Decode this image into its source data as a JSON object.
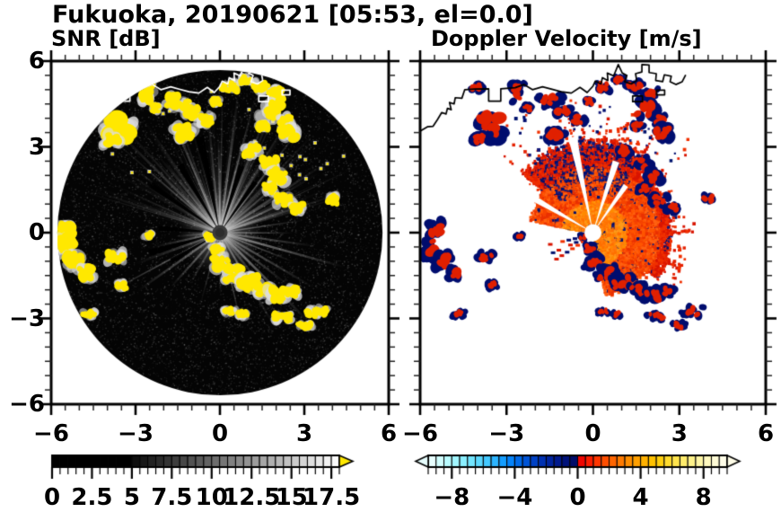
{
  "title": "Fukuoka, 20190621 [05:53, el=0.0]",
  "panels": [
    {
      "subtitle": "SNR [dB]"
    },
    {
      "subtitle": "Doppler Velocity [m/s]"
    }
  ],
  "axes": {
    "xlim": [
      -6,
      6
    ],
    "ylim": [
      -6,
      6
    ],
    "x_tick_values": [
      -6,
      -3,
      0,
      3,
      6
    ],
    "x_tick_labels": [
      "−6",
      "−3",
      "0",
      "3",
      "6"
    ],
    "y_tick_values": [
      6,
      3,
      0,
      -3,
      -6
    ],
    "y_tick_labels": [
      "6",
      "3",
      "0",
      "−3",
      "−6"
    ],
    "minor_tick_step": 0.5
  },
  "colorbars": {
    "snr": {
      "min": 0,
      "max": 18,
      "segment_step": 0.5,
      "tick_values": [
        0,
        2.5,
        5,
        7.5,
        10,
        12.5,
        15,
        17.5
      ],
      "tick_labels": [
        "0",
        "2.5",
        "5",
        "7.5",
        "10",
        "12.5",
        "15",
        "17.5"
      ],
      "major_tick_every": 2.5,
      "over_arrow_color": "#ffe800",
      "segment_colors": [
        "#000000",
        "#000000",
        "#000000",
        "#000000",
        "#000000",
        "#000000",
        "#000000",
        "#000000",
        "#000000",
        "#000000",
        "#0f0f0f",
        "#181818",
        "#222222",
        "#2b2b2b",
        "#343434",
        "#3e3e3e",
        "#474747",
        "#515151",
        "#5a5a5a",
        "#636363",
        "#6d6d6d",
        "#767676",
        "#808080",
        "#898989",
        "#939393",
        "#9c9c9c",
        "#a6a6a6",
        "#afafaf",
        "#b8b8b8",
        "#c2c2c2",
        "#cbcbcb",
        "#d5d5d5",
        "#dedede",
        "#e8e8e8",
        "#f1f1f1",
        "#fafafa"
      ]
    },
    "vel": {
      "min": -9.5,
      "max": 9.5,
      "segment_step": 0.5,
      "tick_values": [
        -8,
        -4,
        0,
        4,
        8
      ],
      "tick_labels": [
        "−8",
        "−4",
        "0",
        "4",
        "8"
      ],
      "segment_colors": [
        "#e8ffff",
        "#d1feff",
        "#b9fbff",
        "#a1f6ff",
        "#8aefff",
        "#72e5ff",
        "#5bd8ff",
        "#43c8ff",
        "#2cb4ff",
        "#149dff",
        "#0583fa",
        "#006ae8",
        "#0054d6",
        "#0041c4",
        "#0031b1",
        "#00249f",
        "#001a8d",
        "#00127a",
        "#000c68",
        "#ee0500",
        "#fb1d00",
        "#ff3600",
        "#ff4e00",
        "#ff6500",
        "#ff7a00",
        "#ff8e00",
        "#ffa000",
        "#ffb100",
        "#ffc100",
        "#ffcf0e",
        "#ffdb2e",
        "#ffe44d",
        "#ffec6c",
        "#fff28a",
        "#fff6a6",
        "#fff9c0",
        "#fffbd6",
        "#fffde8"
      ]
    }
  },
  "chart_data": {
    "type": "radar_ppi_pair",
    "site": "Fukuoka",
    "date": "20190621",
    "time": "05:53",
    "elevation_deg": 0.0,
    "x_range": [
      -6,
      6
    ],
    "y_range": [
      -6,
      6
    ],
    "scan_radius": 5.78,
    "snr_panel": {
      "title": "SNR [dB]",
      "units": "dB",
      "value_range": [
        0,
        18
      ],
      "over_color": "#ffe800",
      "background_in_scan": "#040404"
    },
    "vel_panel": {
      "title": "Doppler Velocity [m/s]",
      "units": "m/s",
      "value_range": [
        -9.5,
        9.5
      ],
      "background": "#ffffff"
    },
    "colors": {
      "echo_yellow": "#ffe800",
      "vel_red": "#e02000",
      "vel_orange": "#ff8a00",
      "vel_navy": "#000d6e",
      "coast_left": "#ffffff",
      "coast_right": "#000000"
    },
    "coastline": [
      [
        -6.0,
        3.55
      ],
      [
        -5.75,
        3.7
      ],
      [
        -5.55,
        3.72
      ],
      [
        -5.4,
        3.95
      ],
      [
        -5.25,
        4.2
      ],
      [
        -5.1,
        4.15
      ],
      [
        -5.05,
        4.35
      ],
      [
        -4.92,
        4.3
      ],
      [
        -4.98,
        4.55
      ],
      [
        -4.82,
        4.5
      ],
      [
        -4.78,
        4.72
      ],
      [
        -4.55,
        4.7
      ],
      [
        -4.45,
        5.0
      ],
      [
        -4.1,
        5.02
      ],
      [
        -3.62,
        5.03
      ],
      [
        -3.62,
        4.6
      ],
      [
        -3.2,
        4.6
      ],
      [
        -3.2,
        5.03
      ],
      [
        -2.7,
        5.07
      ],
      [
        -2.4,
        5.18
      ],
      [
        -2.1,
        5.0
      ],
      [
        -1.75,
        5.1
      ],
      [
        -1.45,
        5.02
      ],
      [
        -1.1,
        4.93
      ],
      [
        -0.75,
        4.88
      ],
      [
        -0.45,
        5.08
      ],
      [
        -0.2,
        4.9
      ],
      [
        0.0,
        5.12
      ],
      [
        0.08,
        5.3
      ],
      [
        0.28,
        5.2
      ],
      [
        0.33,
        5.42
      ],
      [
        0.52,
        5.32
      ],
      [
        0.5,
        5.58
      ],
      [
        0.72,
        5.48
      ],
      [
        0.88,
        5.88
      ],
      [
        1.02,
        5.58
      ],
      [
        1.18,
        5.5
      ],
      [
        1.1,
        5.28
      ],
      [
        1.33,
        5.2
      ],
      [
        1.52,
        5.32
      ],
      [
        1.48,
        5.56
      ],
      [
        1.7,
        5.62
      ],
      [
        1.7,
        5.88
      ],
      [
        1.95,
        5.86
      ],
      [
        1.95,
        5.6
      ],
      [
        2.2,
        5.56
      ],
      [
        2.18,
        5.32
      ],
      [
        2.42,
        5.28
      ],
      [
        2.48,
        5.52
      ],
      [
        2.72,
        5.47
      ],
      [
        2.68,
        5.28
      ],
      [
        2.88,
        5.18
      ],
      [
        3.1,
        5.28
      ],
      [
        3.22,
        5.52
      ]
    ],
    "coast_islands": [
      [
        1.55,
        4.68,
        0.34,
        0.2
      ],
      [
        2.35,
        4.9,
        0.28,
        0.16
      ]
    ],
    "echo_blobs": [
      [
        -3.6,
        3.7,
        0.5,
        0.45
      ],
      [
        -3.85,
        3.25,
        0.3,
        0.2
      ],
      [
        -4.05,
        5.05,
        0.22,
        0.15
      ],
      [
        -2.6,
        4.9,
        0.22,
        0.35
      ],
      [
        -2.3,
        4.35,
        0.15,
        0.12
      ],
      [
        -1.5,
        4.6,
        0.4,
        0.22
      ],
      [
        -1.05,
        4.25,
        0.28,
        0.2
      ],
      [
        -1.3,
        3.5,
        0.35,
        0.25
      ],
      [
        -0.5,
        3.95,
        0.25,
        0.18
      ],
      [
        -0.15,
        4.6,
        0.15,
        0.12
      ],
      [
        0.35,
        5.1,
        0.28,
        0.16
      ],
      [
        0.9,
        5.35,
        0.18,
        0.12
      ],
      [
        1.45,
        5.1,
        0.3,
        0.18
      ],
      [
        2.0,
        4.85,
        0.25,
        0.18
      ],
      [
        1.8,
        4.3,
        0.4,
        0.28
      ],
      [
        2.35,
        3.95,
        0.22,
        0.16
      ],
      [
        1.55,
        3.7,
        0.2,
        0.15
      ],
      [
        2.4,
        3.5,
        0.3,
        0.25
      ],
      [
        1.1,
        2.85,
        0.25,
        0.2
      ],
      [
        1.75,
        2.4,
        0.28,
        0.2
      ],
      [
        2.1,
        1.95,
        0.3,
        0.22
      ],
      [
        1.75,
        1.55,
        0.2,
        0.15
      ],
      [
        2.3,
        1.15,
        0.3,
        0.18
      ],
      [
        2.75,
        0.85,
        0.22,
        0.15
      ],
      [
        4.0,
        1.15,
        0.18,
        0.14
      ],
      [
        -5.45,
        0.1,
        0.25,
        0.3
      ],
      [
        -5.55,
        -0.5,
        0.3,
        0.4
      ],
      [
        -5.2,
        -1.0,
        0.28,
        0.3
      ],
      [
        -4.75,
        -1.4,
        0.25,
        0.22
      ],
      [
        -3.7,
        -0.85,
        0.3,
        0.18
      ],
      [
        -3.5,
        -1.85,
        0.18,
        0.12
      ],
      [
        -4.65,
        -2.85,
        0.22,
        0.12
      ],
      [
        -2.55,
        -0.1,
        0.15,
        0.1
      ],
      [
        -0.1,
        -0.55,
        0.18,
        0.14
      ],
      [
        -0.35,
        -0.15,
        0.14,
        0.1
      ],
      [
        0.0,
        -1.05,
        0.3,
        0.22
      ],
      [
        0.45,
        -1.45,
        0.35,
        0.25
      ],
      [
        1.0,
        -1.75,
        0.38,
        0.25
      ],
      [
        1.55,
        -2.0,
        0.3,
        0.2
      ],
      [
        2.05,
        -2.2,
        0.35,
        0.22
      ],
      [
        2.55,
        -2.05,
        0.25,
        0.16
      ],
      [
        0.35,
        -2.75,
        0.22,
        0.1
      ],
      [
        0.8,
        -2.85,
        0.18,
        0.1
      ],
      [
        2.2,
        -2.95,
        0.35,
        0.15
      ],
      [
        3.45,
        -2.75,
        0.4,
        0.16
      ],
      [
        3.0,
        -3.25,
        0.25,
        0.12
      ]
    ],
    "bright_rays": [
      [
        135,
        5.3
      ],
      [
        128,
        3.2
      ],
      [
        112,
        4.3
      ],
      [
        104,
        3.1
      ],
      [
        96,
        4.6
      ],
      [
        90,
        3.3
      ],
      [
        83,
        5.0
      ],
      [
        76,
        3.4
      ],
      [
        68,
        4.4
      ],
      [
        60,
        3.0
      ],
      [
        52,
        4.7
      ],
      [
        40,
        3.6
      ],
      [
        33,
        4.4
      ],
      [
        25,
        3.2
      ],
      [
        18,
        4.2
      ],
      [
        8,
        3.0
      ],
      [
        0,
        2.6
      ],
      [
        352,
        3.4
      ],
      [
        345,
        4.6
      ],
      [
        338,
        2.8
      ],
      [
        330,
        3.9
      ],
      [
        322,
        3.1
      ],
      [
        315,
        4.5
      ],
      [
        308,
        2.7
      ],
      [
        300,
        3.8
      ],
      [
        290,
        2.6
      ],
      [
        283,
        3.2
      ],
      [
        270,
        2.2
      ],
      [
        255,
        2.6
      ],
      [
        240,
        2.0
      ],
      [
        228,
        2.6
      ],
      [
        215,
        3.6
      ],
      [
        208,
        4.6
      ],
      [
        200,
        3.2
      ],
      [
        192,
        2.4
      ],
      [
        185,
        1.6
      ]
    ],
    "dark_wedges": [
      [
        102,
        3.5
      ],
      [
        72,
        2.5
      ],
      [
        55,
        2.2
      ],
      [
        120,
        2.8
      ],
      [
        145,
        3.0
      ],
      [
        176,
        2.2
      ],
      [
        196,
        2.6
      ],
      [
        210,
        2.0
      ]
    ],
    "white_wedges": [
      [
        102,
        3.4
      ],
      [
        72,
        2.6
      ],
      [
        55,
        2.0
      ],
      [
        150,
        2.4
      ],
      [
        180,
        3.0
      ],
      [
        196,
        2.2
      ],
      [
        210,
        1.8
      ]
    ],
    "fan_regions": [
      [
        55,
        140,
        3.3,
        1.0
      ],
      [
        -35,
        55,
        2.7,
        0.8
      ],
      [
        140,
        168,
        2.3,
        0.35
      ],
      [
        -80,
        -35,
        2.2,
        0.3
      ]
    ],
    "navy_band": [
      58,
      135,
      1.5,
      3.3
    ]
  }
}
